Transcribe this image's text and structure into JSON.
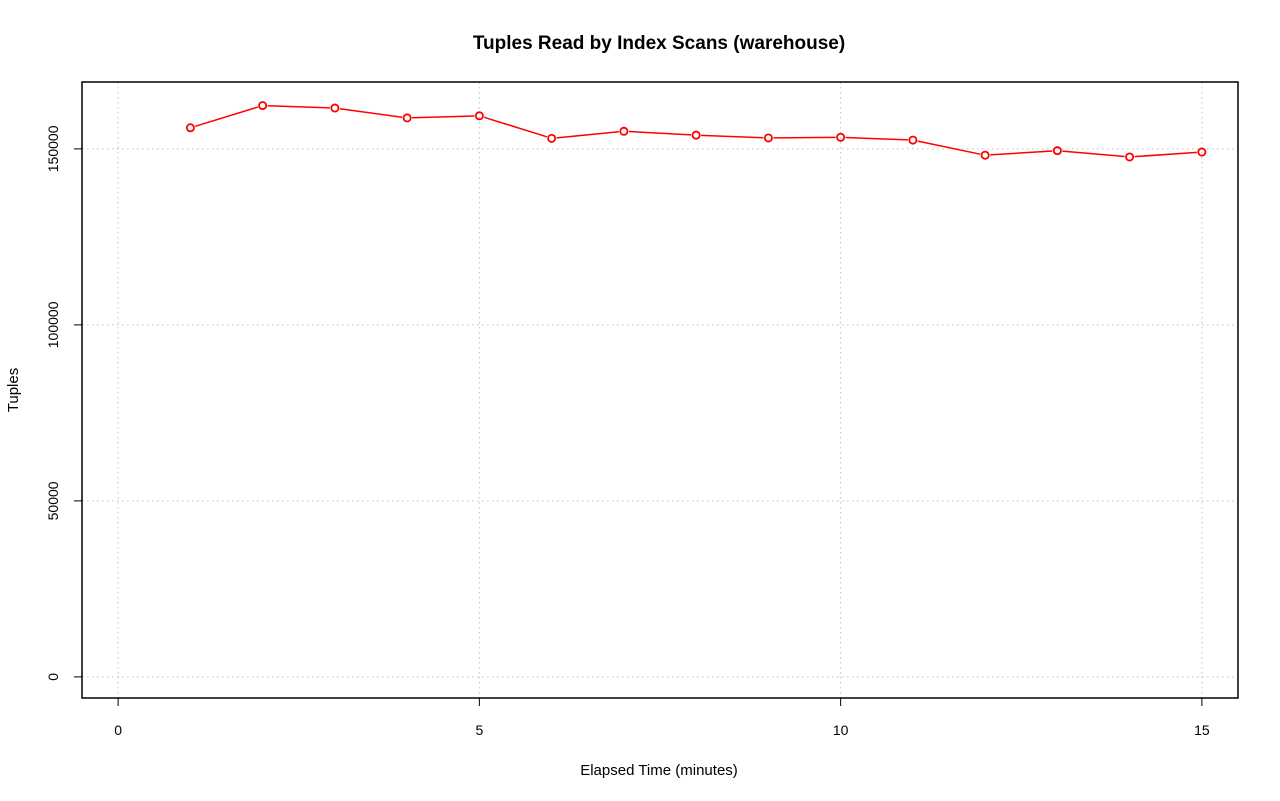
{
  "chart_data": {
    "type": "line",
    "title": "Tuples Read by Index Scans (warehouse)",
    "xlabel": "Elapsed Time (minutes)",
    "ylabel": "Tuples",
    "xlim": [
      -0.5,
      15.5
    ],
    "ylim": [
      -6000,
      169000
    ],
    "x_ticks": [
      0,
      5,
      10,
      15
    ],
    "y_ticks": [
      0,
      50000,
      100000,
      150000
    ],
    "x_tick_labels": [
      "0",
      "5",
      "10",
      "15"
    ],
    "y_tick_labels": [
      "0",
      "50000",
      "100000",
      "150000"
    ],
    "grid": true,
    "series_color": "#ff0000",
    "series": [
      {
        "x": [
          1,
          2,
          3,
          4,
          5,
          6,
          7,
          8,
          9,
          10,
          11,
          12,
          13,
          14,
          15
        ],
        "values": [
          156000,
          162300,
          161600,
          158800,
          159400,
          153000,
          155000,
          153900,
          153100,
          153300,
          152500,
          148200,
          149500,
          147700,
          149100
        ]
      }
    ]
  }
}
